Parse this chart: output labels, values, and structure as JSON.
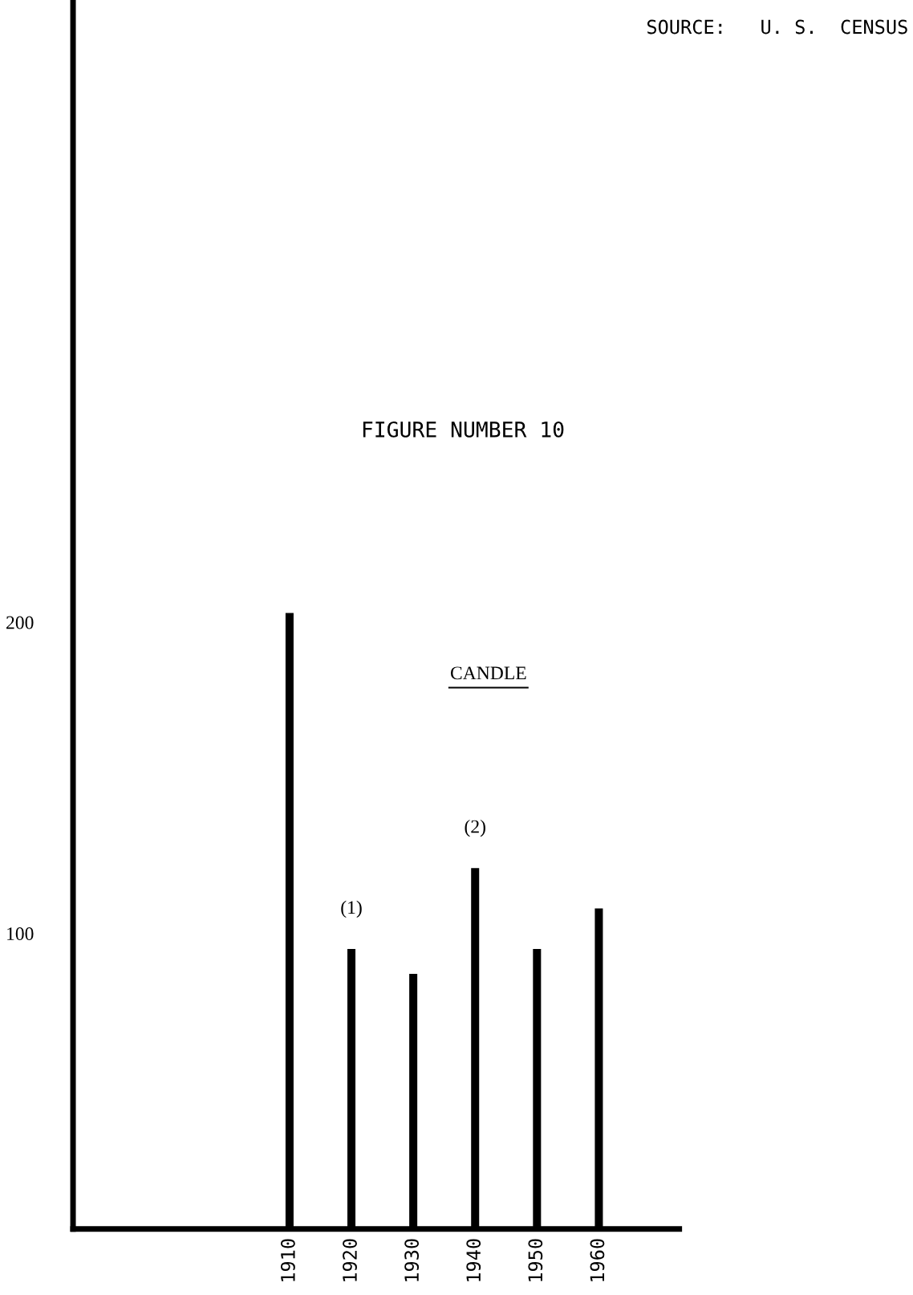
{
  "chart_data": {
    "type": "bar",
    "title": "FIGURE NUMBER 10",
    "subtitle": "CANDLE",
    "x": [
      1910,
      1920,
      1930,
      1940,
      1950,
      1960
    ],
    "values": [
      203,
      95,
      87,
      121,
      95,
      108
    ],
    "color": "#000000",
    "xlim": [
      1875,
      1973
    ],
    "xticks": [
      1910,
      1920,
      1930,
      1940,
      1950,
      1960
    ],
    "ylim": [
      5,
      400
    ],
    "yticks": [
      100,
      200
    ],
    "grid": false,
    "annotations": [
      {
        "text": "(1)",
        "x": 1920,
        "y": 95
      },
      {
        "text": "(2)",
        "x": 1940,
        "y": 121
      },
      "SOURCE:   U. S.  CENSUS"
    ]
  }
}
